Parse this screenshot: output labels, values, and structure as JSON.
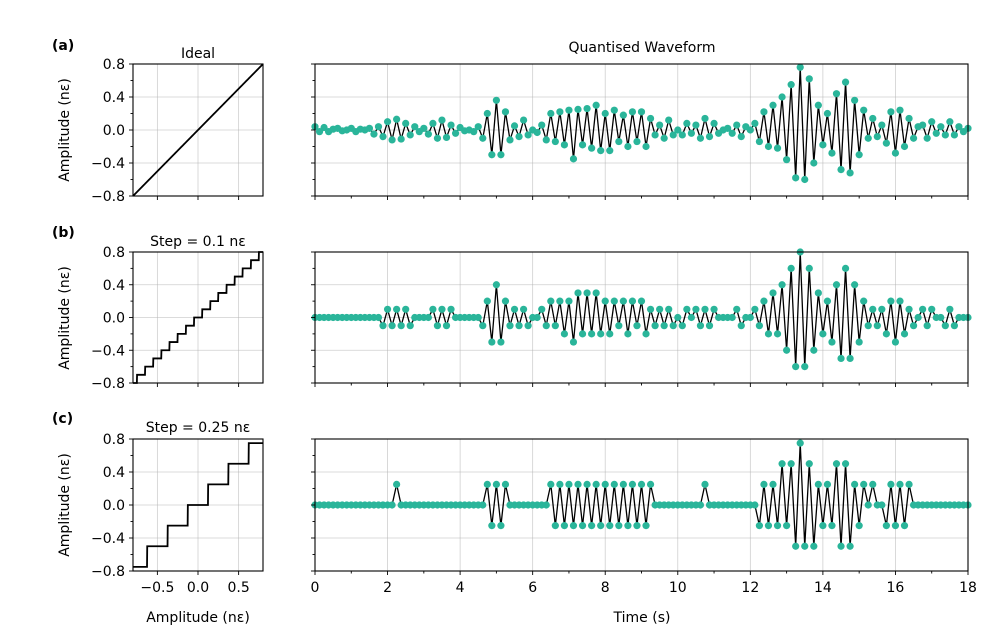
{
  "chart_data": [
    {
      "panel": "(a)",
      "type": "line",
      "title": "Ideal",
      "ylabel": "Amplitude (nε)",
      "xlabel": "",
      "xlim": [
        -0.8,
        0.8
      ],
      "ylim": [
        -0.8,
        0.8
      ],
      "yticks": [
        "0.8",
        "0.4",
        "0.0",
        "−0.4",
        "−0.8"
      ],
      "xticks": [],
      "step": 0
    },
    {
      "panel": "",
      "type": "line",
      "title": "Quantised Waveform",
      "xlabel": "",
      "xlim": [
        0,
        18
      ],
      "ylim": [
        -0.8,
        0.8
      ],
      "xticks": [],
      "step": 0,
      "x": [
        0,
        0.125,
        0.25,
        0.375,
        0.5,
        0.625,
        0.75,
        0.875,
        1,
        1.125,
        1.25,
        1.375,
        1.5,
        1.625,
        1.75,
        1.875,
        2,
        2.125,
        2.25,
        2.375,
        2.5,
        2.625,
        2.75,
        2.875,
        3,
        3.125,
        3.25,
        3.375,
        3.5,
        3.625,
        3.75,
        3.875,
        4,
        4.125,
        4.25,
        4.375,
        4.5,
        4.625,
        4.75,
        4.875,
        5,
        5.125,
        5.25,
        5.375,
        5.5,
        5.625,
        5.75,
        5.875,
        6,
        6.125,
        6.25,
        6.375,
        6.5,
        6.625,
        6.75,
        6.875,
        7,
        7.125,
        7.25,
        7.375,
        7.5,
        7.625,
        7.75,
        7.875,
        8,
        8.125,
        8.25,
        8.375,
        8.5,
        8.625,
        8.75,
        8.875,
        9,
        9.125,
        9.25,
        9.375,
        9.5,
        9.625,
        9.75,
        9.875,
        10,
        10.125,
        10.25,
        10.375,
        10.5,
        10.625,
        10.75,
        10.875,
        11,
        11.125,
        11.25,
        11.375,
        11.5,
        11.625,
        11.75,
        11.875,
        12,
        12.125,
        12.25,
        12.375,
        12.5,
        12.625,
        12.75,
        12.875,
        13,
        13.125,
        13.25,
        13.375,
        13.5,
        13.625,
        13.75,
        13.875,
        14,
        14.125,
        14.25,
        14.375,
        14.5,
        14.625,
        14.75,
        14.875,
        15,
        15.125,
        15.25,
        15.375,
        15.5,
        15.625,
        15.75,
        15.875,
        16,
        16.125,
        16.25,
        16.375,
        16.5,
        16.625,
        16.75,
        16.875,
        17,
        17.125,
        17.25,
        17.375,
        17.5,
        17.625,
        17.75,
        17.875,
        18
      ],
      "y": [
        0.04,
        -0.02,
        0.03,
        -0.02,
        0.01,
        0.02,
        -0.01,
        0.0,
        0.02,
        -0.02,
        0.01,
        0.0,
        0.02,
        -0.05,
        0.04,
        -0.08,
        0.1,
        -0.12,
        0.13,
        -0.11,
        0.08,
        -0.06,
        0.04,
        -0.02,
        0.02,
        -0.05,
        0.08,
        -0.1,
        0.12,
        -0.09,
        0.06,
        -0.04,
        0.03,
        -0.01,
        0.0,
        -0.02,
        0.04,
        -0.1,
        0.2,
        -0.3,
        0.36,
        -0.3,
        0.22,
        -0.12,
        0.05,
        -0.08,
        0.12,
        -0.06,
        0.0,
        -0.03,
        0.06,
        -0.12,
        0.2,
        -0.14,
        0.22,
        -0.18,
        0.24,
        -0.35,
        0.25,
        -0.18,
        0.26,
        -0.22,
        0.3,
        -0.25,
        0.2,
        -0.25,
        0.24,
        -0.14,
        0.18,
        -0.2,
        0.22,
        -0.14,
        0.22,
        -0.2,
        0.14,
        -0.06,
        0.06,
        -0.1,
        0.12,
        -0.06,
        0.0,
        -0.06,
        0.08,
        -0.04,
        0.06,
        -0.1,
        0.14,
        -0.08,
        0.08,
        -0.04,
        0.0,
        0.02,
        -0.04,
        0.06,
        -0.08,
        0.04,
        0.0,
        0.08,
        -0.14,
        0.22,
        -0.2,
        0.3,
        -0.22,
        0.4,
        -0.36,
        0.55,
        -0.58,
        0.76,
        -0.6,
        0.62,
        -0.4,
        0.3,
        -0.18,
        0.2,
        -0.28,
        0.44,
        -0.48,
        0.58,
        -0.52,
        0.36,
        -0.3,
        0.24,
        -0.1,
        0.14,
        -0.08,
        0.06,
        -0.16,
        0.22,
        -0.28,
        0.24,
        -0.2,
        0.14,
        -0.1,
        0.04,
        0.06,
        -0.1,
        0.1,
        -0.04,
        0.04,
        -0.06,
        0.1,
        -0.06,
        0.04,
        -0.02,
        0.02
      ]
    },
    {
      "panel": "(b)",
      "type": "line",
      "title": "Step = 0.1 nε",
      "ylabel": "Amplitude (nε)",
      "xlabel": "",
      "xlim": [
        -0.8,
        0.8
      ],
      "ylim": [
        -0.8,
        0.8
      ],
      "yticks": [
        "0.8",
        "0.4",
        "0.0",
        "−0.4",
        "−0.8"
      ],
      "xticks": [],
      "step": 0.1
    },
    {
      "panel": "",
      "type": "line",
      "title": "",
      "xlabel": "",
      "xlim": [
        0,
        18
      ],
      "ylim": [
        -0.8,
        0.8
      ],
      "xticks": [],
      "step": 0.1
    },
    {
      "panel": "(c)",
      "type": "line",
      "title": "Step = 0.25 nε",
      "ylabel": "Amplitude (nε)",
      "xlabel": "Amplitude (nε)",
      "xlim": [
        -0.8,
        0.8
      ],
      "ylim": [
        -0.8,
        0.8
      ],
      "yticks": [
        "0.8",
        "0.4",
        "0.0",
        "−0.4",
        "−0.8"
      ],
      "xticks": [
        "−0.5",
        "0.0",
        "0.5"
      ],
      "step": 0.25
    },
    {
      "panel": "",
      "type": "line",
      "title": "",
      "xlabel": "Time (s)",
      "xlim": [
        0,
        18
      ],
      "ylim": [
        -0.8,
        0.8
      ],
      "xticks": [
        "0",
        "2",
        "4",
        "6",
        "8",
        "10",
        "12",
        "14",
        "16",
        "18"
      ],
      "step": 0.25
    }
  ],
  "colors": {
    "marker": "#2ab59a",
    "line": "#000000"
  }
}
